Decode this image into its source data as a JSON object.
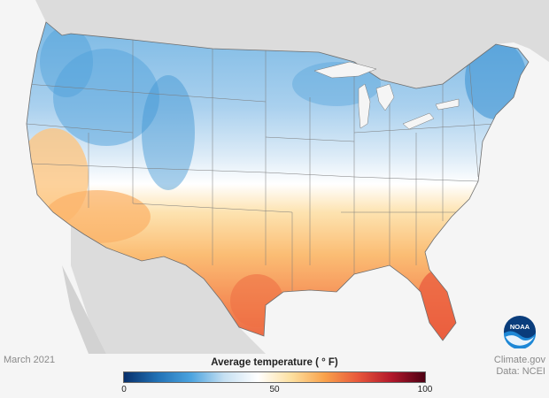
{
  "date_label": "March 2021",
  "source": {
    "site": "Climate.gov",
    "data": "Data: NCEI"
  },
  "legend": {
    "title": "Average temperature ( ° F)",
    "ticks": [
      "0",
      "50",
      "100"
    ],
    "colors": [
      "#08306b",
      "#2171b5",
      "#4ba3df",
      "#c6e0f2",
      "#ffffff",
      "#fde0a0",
      "#f9a24b",
      "#e8573b",
      "#b2182b",
      "#4d0013"
    ]
  },
  "map": {
    "region": "Contiguous United States",
    "colors": {
      "background": "#f5f5f5",
      "neighbor_land": "#dcdcdc",
      "state_border": "#6e6e6e",
      "cold": "#5aa6dc",
      "cool": "#c9e1f3",
      "neutral": "#ffffff",
      "warm": "#fcc682",
      "hot": "#ef6f45"
    }
  },
  "logo": {
    "text": "NOAA",
    "color": "#0a3d7c"
  }
}
